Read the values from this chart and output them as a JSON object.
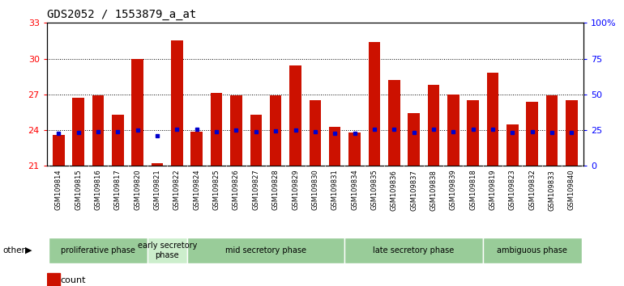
{
  "title": "GDS2052 / 1553879_a_at",
  "samples": [
    "GSM109814",
    "GSM109815",
    "GSM109816",
    "GSM109817",
    "GSM109820",
    "GSM109821",
    "GSM109822",
    "GSM109824",
    "GSM109825",
    "GSM109826",
    "GSM109827",
    "GSM109828",
    "GSM109829",
    "GSM109830",
    "GSM109831",
    "GSM109834",
    "GSM109835",
    "GSM109836",
    "GSM109837",
    "GSM109838",
    "GSM109839",
    "GSM109818",
    "GSM109819",
    "GSM109823",
    "GSM109832",
    "GSM109833",
    "GSM109840"
  ],
  "count_values": [
    23.6,
    26.7,
    26.9,
    25.3,
    30.0,
    21.2,
    31.5,
    23.9,
    27.1,
    26.9,
    25.3,
    26.9,
    29.4,
    26.5,
    24.3,
    23.8,
    31.4,
    28.2,
    25.4,
    27.8,
    27.0,
    26.5,
    28.8,
    24.5,
    26.4,
    26.9,
    26.5
  ],
  "percentile_values": [
    23.7,
    23.8,
    23.85,
    23.9,
    24.0,
    23.55,
    24.1,
    24.05,
    23.9,
    24.0,
    23.9,
    23.95,
    24.0,
    23.85,
    23.75,
    23.7,
    24.1,
    24.05,
    23.8,
    24.05,
    23.85,
    24.05,
    24.1,
    23.8,
    23.85,
    23.8,
    23.8
  ],
  "phase_data": [
    {
      "label": "proliferative phase",
      "start": 0,
      "end": 5,
      "color": "#99cc99"
    },
    {
      "label": "early secretory\nphase",
      "start": 5,
      "end": 7,
      "color": "#cceecc"
    },
    {
      "label": "mid secretory phase",
      "start": 7,
      "end": 15,
      "color": "#99cc99"
    },
    {
      "label": "late secretory phase",
      "start": 15,
      "end": 22,
      "color": "#99cc99"
    },
    {
      "label": "ambiguous phase",
      "start": 22,
      "end": 27,
      "color": "#99cc99"
    }
  ],
  "y_min": 21,
  "y_max": 33,
  "yticks_left": [
    21,
    24,
    27,
    30,
    33
  ],
  "right_tick_positions": [
    21,
    24,
    27,
    30,
    33
  ],
  "right_tick_labels": [
    "0",
    "25",
    "50",
    "75",
    "100%"
  ],
  "bar_color": "#cc1100",
  "percentile_color": "#0000cc",
  "tick_bg_color": "#cccccc",
  "plot_bg": "#ffffff"
}
